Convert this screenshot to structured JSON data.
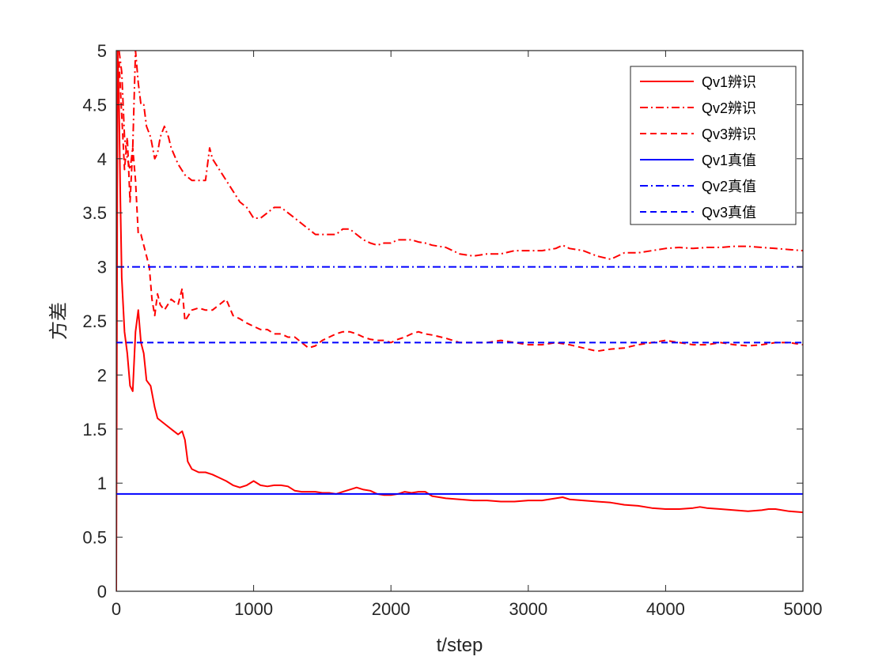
{
  "chart_data": {
    "type": "line",
    "xlabel": "t/step",
    "ylabel": "方差",
    "xlim": [
      0,
      5000
    ],
    "ylim": [
      0,
      5
    ],
    "x_ticks": [
      0,
      1000,
      2000,
      3000,
      4000,
      5000
    ],
    "x_tick_labels": [
      "0",
      "1000",
      "2000",
      "3000",
      "4000",
      "5000"
    ],
    "y_ticks": [
      0,
      0.5,
      1,
      1.5,
      2,
      2.5,
      3,
      3.5,
      4,
      4.5,
      5
    ],
    "y_tick_labels": [
      "0",
      "0.5",
      "1",
      "1.5",
      "2",
      "2.5",
      "3",
      "3.5",
      "4",
      "4.5",
      "5"
    ],
    "grid": false,
    "legend_position": "top-right",
    "series": [
      {
        "name": "Qv1辨识",
        "color": "#ff0000",
        "style": "solid",
        "x": [
          0,
          10,
          20,
          30,
          40,
          60,
          80,
          100,
          120,
          140,
          160,
          180,
          200,
          220,
          250,
          280,
          300,
          350,
          400,
          450,
          480,
          500,
          520,
          550,
          600,
          650,
          700,
          750,
          800,
          850,
          900,
          950,
          1000,
          1050,
          1100,
          1150,
          1200,
          1250,
          1300,
          1350,
          1400,
          1450,
          1500,
          1550,
          1600,
          1650,
          1700,
          1750,
          1800,
          1850,
          1900,
          1950,
          2000,
          2050,
          2100,
          2150,
          2200,
          2250,
          2300,
          2350,
          2400,
          2500,
          2600,
          2700,
          2800,
          2900,
          3000,
          3100,
          3200,
          3250,
          3300,
          3400,
          3500,
          3600,
          3700,
          3800,
          3900,
          4000,
          4100,
          4200,
          4250,
          4300,
          4400,
          4500,
          4600,
          4700,
          4750,
          4800,
          4900,
          5000
        ],
        "values": [
          0,
          5.0,
          4.5,
          3.6,
          2.9,
          2.4,
          2.2,
          1.9,
          1.85,
          2.4,
          2.6,
          2.3,
          2.2,
          1.95,
          1.9,
          1.7,
          1.6,
          1.55,
          1.5,
          1.45,
          1.48,
          1.4,
          1.2,
          1.13,
          1.1,
          1.1,
          1.08,
          1.05,
          1.02,
          0.98,
          0.96,
          0.98,
          1.02,
          0.98,
          0.97,
          0.98,
          0.98,
          0.97,
          0.93,
          0.92,
          0.92,
          0.92,
          0.91,
          0.91,
          0.9,
          0.92,
          0.94,
          0.96,
          0.94,
          0.93,
          0.9,
          0.89,
          0.89,
          0.9,
          0.92,
          0.91,
          0.92,
          0.92,
          0.88,
          0.87,
          0.86,
          0.85,
          0.84,
          0.84,
          0.83,
          0.83,
          0.84,
          0.84,
          0.86,
          0.87,
          0.85,
          0.84,
          0.83,
          0.82,
          0.8,
          0.79,
          0.77,
          0.76,
          0.76,
          0.77,
          0.78,
          0.77,
          0.76,
          0.75,
          0.74,
          0.75,
          0.76,
          0.76,
          0.74,
          0.73
        ]
      },
      {
        "name": "Qv2辨识",
        "color": "#ff0000",
        "style": "dashdot",
        "x": [
          20,
          40,
          60,
          80,
          100,
          120,
          140,
          160,
          180,
          200,
          220,
          250,
          280,
          300,
          320,
          350,
          380,
          400,
          450,
          500,
          550,
          600,
          650,
          680,
          700,
          750,
          800,
          850,
          900,
          950,
          1000,
          1050,
          1100,
          1150,
          1200,
          1250,
          1300,
          1350,
          1400,
          1450,
          1500,
          1550,
          1600,
          1650,
          1700,
          1750,
          1800,
          1850,
          1900,
          1950,
          2000,
          2050,
          2100,
          2150,
          2200,
          2250,
          2300,
          2400,
          2500,
          2600,
          2700,
          2800,
          2900,
          3000,
          3100,
          3200,
          3250,
          3300,
          3400,
          3500,
          3600,
          3700,
          3800,
          3900,
          4000,
          4100,
          4200,
          4300,
          4400,
          4500,
          4600,
          4700,
          4800,
          4900,
          5000
        ],
        "values": [
          5.0,
          4.8,
          4.2,
          4.0,
          3.9,
          4.1,
          5.0,
          4.7,
          4.5,
          4.5,
          4.3,
          4.2,
          4.0,
          4.05,
          4.2,
          4.3,
          4.2,
          4.1,
          3.95,
          3.85,
          3.8,
          3.8,
          3.8,
          4.1,
          4.0,
          3.9,
          3.8,
          3.7,
          3.6,
          3.55,
          3.45,
          3.45,
          3.5,
          3.55,
          3.55,
          3.5,
          3.45,
          3.4,
          3.35,
          3.3,
          3.3,
          3.3,
          3.3,
          3.35,
          3.35,
          3.3,
          3.25,
          3.22,
          3.2,
          3.22,
          3.22,
          3.25,
          3.25,
          3.25,
          3.23,
          3.22,
          3.2,
          3.18,
          3.12,
          3.1,
          3.12,
          3.12,
          3.15,
          3.15,
          3.15,
          3.17,
          3.2,
          3.17,
          3.15,
          3.1,
          3.07,
          3.13,
          3.13,
          3.15,
          3.17,
          3.18,
          3.17,
          3.18,
          3.18,
          3.19,
          3.19,
          3.18,
          3.17,
          3.16,
          3.15
        ]
      },
      {
        "name": "Qv3辨识",
        "color": "#ff0000",
        "style": "dashed",
        "x": [
          20,
          40,
          60,
          80,
          100,
          120,
          140,
          160,
          180,
          200,
          220,
          240,
          260,
          280,
          300,
          320,
          350,
          400,
          450,
          480,
          500,
          550,
          600,
          650,
          700,
          750,
          800,
          850,
          900,
          950,
          1000,
          1050,
          1100,
          1150,
          1200,
          1250,
          1300,
          1350,
          1400,
          1450,
          1500,
          1550,
          1600,
          1650,
          1700,
          1750,
          1800,
          1850,
          1900,
          1950,
          2000,
          2050,
          2100,
          2150,
          2200,
          2250,
          2300,
          2400,
          2500,
          2600,
          2700,
          2800,
          2900,
          3000,
          3100,
          3200,
          3300,
          3400,
          3500,
          3600,
          3700,
          3800,
          3900,
          4000,
          4100,
          4200,
          4300,
          4400,
          4500,
          4600,
          4700,
          4800,
          4900,
          5000
        ],
        "values": [
          4.9,
          4.4,
          3.9,
          4.2,
          3.6,
          4.1,
          3.8,
          3.3,
          3.3,
          3.2,
          3.1,
          3.0,
          2.7,
          2.55,
          2.75,
          2.65,
          2.6,
          2.7,
          2.65,
          2.8,
          2.5,
          2.6,
          2.62,
          2.6,
          2.6,
          2.65,
          2.7,
          2.55,
          2.52,
          2.48,
          2.45,
          2.42,
          2.42,
          2.38,
          2.38,
          2.35,
          2.35,
          2.3,
          2.25,
          2.27,
          2.32,
          2.35,
          2.38,
          2.4,
          2.4,
          2.38,
          2.35,
          2.33,
          2.32,
          2.32,
          2.3,
          2.33,
          2.35,
          2.38,
          2.4,
          2.38,
          2.37,
          2.34,
          2.3,
          2.3,
          2.3,
          2.32,
          2.3,
          2.28,
          2.28,
          2.3,
          2.28,
          2.25,
          2.22,
          2.24,
          2.25,
          2.28,
          2.3,
          2.32,
          2.3,
          2.28,
          2.28,
          2.3,
          2.28,
          2.27,
          2.28,
          2.3,
          2.3,
          2.28
        ]
      },
      {
        "name": "Qv1真值",
        "color": "#0000ff",
        "style": "solid",
        "x": [
          0,
          5000
        ],
        "values": [
          0.9,
          0.9
        ]
      },
      {
        "name": "Qv2真值",
        "color": "#0000ff",
        "style": "dashdot",
        "x": [
          0,
          5000
        ],
        "values": [
          3.0,
          3.0
        ]
      },
      {
        "name": "Qv3真值",
        "color": "#0000ff",
        "style": "dashed",
        "x": [
          0,
          5000
        ],
        "values": [
          2.3,
          2.3
        ]
      }
    ]
  }
}
